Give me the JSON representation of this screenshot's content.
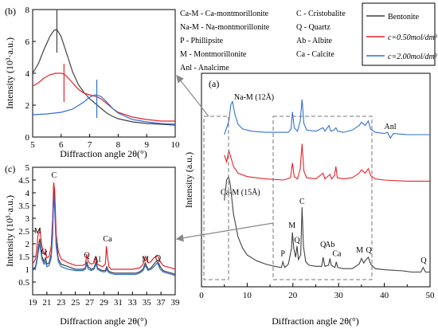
{
  "legend_entries": [
    {
      "label": "Bentonite",
      "color": "#404040"
    },
    {
      "label": "c=0.50mol/dm³",
      "color": "#e8222a"
    },
    {
      "label": "c=2.00mol/dm³",
      "color": "#2f6fd6"
    }
  ],
  "abbreviations": [
    "Ca-M - Ca-montmorillonite",
    "Na-M - Na-montmorillonite",
    "P - Phillipsite",
    "M - Montmorillonite",
    "Anl - Analcime",
    "C - Cristobalite",
    "Q - Quartz",
    "Ab - Albite",
    "Ca - Calcite"
  ],
  "chart_data": [
    {
      "panel": "(b)",
      "type": "line",
      "xlabel": "Diffraction angle 2θ(°)",
      "ylabel": "Intensity (10³·a.u.)",
      "xlim": [
        5,
        10
      ],
      "ylim": [
        0,
        8
      ],
      "xticks": [
        5,
        6,
        7,
        8,
        9,
        10
      ],
      "yticks": [
        0,
        2,
        4,
        6,
        8
      ],
      "series": [
        {
          "name": "Bentonite",
          "color": "#404040",
          "x": [
            5,
            5.2,
            5.4,
            5.6,
            5.75,
            5.85,
            6.0,
            6.2,
            6.4,
            6.6,
            6.8,
            7.0,
            7.2,
            7.4,
            7.6,
            7.8,
            8,
            8.5,
            9,
            9.5,
            10
          ],
          "y": [
            4.0,
            4.6,
            5.5,
            6.3,
            6.7,
            6.75,
            6.3,
            5.2,
            4.1,
            3.3,
            2.8,
            2.4,
            2.1,
            1.8,
            1.5,
            1.3,
            1.15,
            0.95,
            0.85,
            0.8,
            0.75
          ]
        },
        {
          "name": "c=0.50mol/dm³",
          "color": "#e8222a",
          "x": [
            5,
            5.2,
            5.4,
            5.6,
            5.8,
            6.0,
            6.1,
            6.2,
            6.4,
            6.6,
            6.8,
            7.0,
            7.2,
            7.4,
            7.6,
            7.8,
            8,
            8.5,
            9,
            9.5,
            10
          ],
          "y": [
            3.2,
            3.4,
            3.7,
            3.9,
            4.0,
            4.0,
            3.95,
            3.8,
            3.4,
            3.0,
            2.75,
            2.65,
            2.55,
            2.4,
            2.1,
            1.8,
            1.55,
            1.25,
            1.1,
            1.0,
            1.0
          ]
        },
        {
          "name": "c=2.00mol/dm³",
          "color": "#2f6fd6",
          "x": [
            5,
            5.5,
            6.0,
            6.4,
            6.8,
            7.0,
            7.2,
            7.4,
            7.6,
            7.8,
            8,
            8.5,
            9,
            9.5,
            10
          ],
          "y": [
            1.4,
            1.45,
            1.55,
            1.75,
            2.2,
            2.5,
            2.65,
            2.55,
            2.2,
            1.8,
            1.5,
            1.1,
            0.95,
            0.85,
            0.8
          ]
        }
      ],
      "markers": [
        {
          "x": 5.85,
          "y0": 5.3,
          "y1": 8.2,
          "color": "#404040"
        },
        {
          "x": 6.1,
          "y0": 2.2,
          "y1": 4.6,
          "color": "#e8222a"
        },
        {
          "x": 7.25,
          "y0": 1.2,
          "y1": 3.6,
          "color": "#2f6fd6"
        }
      ]
    },
    {
      "panel": "(a)",
      "type": "line",
      "xlabel": "Diffraction angle 2θ(°)",
      "ylabel": "Intensity (a.u.)",
      "xlim": [
        0,
        50
      ],
      "xticks": [
        0,
        10,
        20,
        30,
        40,
        50
      ],
      "peak_labels": [
        {
          "text": "Na-M (12Å)",
          "x": 11.5,
          "y": 8.45
        },
        {
          "text": "Anl",
          "x": 41.3,
          "y": 7.15
        },
        {
          "text": "Ca-M (15Å)",
          "x": 8.5,
          "y": 4.25
        },
        {
          "text": "P",
          "x": 17.8,
          "y": 1.55
        },
        {
          "text": "M",
          "x": 19.8,
          "y": 2.8
        },
        {
          "text": "Q",
          "x": 20.9,
          "y": 2.15
        },
        {
          "text": "C",
          "x": 22.0,
          "y": 3.85
        },
        {
          "text": "Q",
          "x": 26.6,
          "y": 1.95
        },
        {
          "text": "Ab",
          "x": 28.1,
          "y": 1.95
        },
        {
          "text": "Ca",
          "x": 29.6,
          "y": 1.55
        },
        {
          "text": "M",
          "x": 34.6,
          "y": 1.7
        },
        {
          "text": "Q",
          "x": 36.6,
          "y": 1.7
        },
        {
          "text": "Q",
          "x": 48.6,
          "y": 1.25
        }
      ],
      "series": [
        {
          "name": "Bentonite",
          "color": "#404040",
          "x": [
            5,
            5.5,
            5.9,
            6.3,
            7,
            8,
            9,
            10,
            12,
            14,
            16,
            17.5,
            17.8,
            18.2,
            19,
            19.7,
            19.9,
            20.2,
            20.6,
            20.9,
            21.2,
            21.7,
            22.0,
            22.3,
            22.8,
            23.5,
            25,
            26.3,
            26.6,
            27,
            27.8,
            28.1,
            28.4,
            29.2,
            29.5,
            29.8,
            31,
            33,
            34.5,
            35,
            35.5,
            36,
            36.5,
            37,
            38,
            40,
            44,
            46,
            48,
            48.5,
            49,
            50
          ],
          "y": [
            4.0,
            4.9,
            5.05,
            4.7,
            3.4,
            2.4,
            1.9,
            1.6,
            1.35,
            1.2,
            1.1,
            1.05,
            1.3,
            1.05,
            1.2,
            1.9,
            2.6,
            1.9,
            1.5,
            2.0,
            1.4,
            1.6,
            3.7,
            2.0,
            1.3,
            1.15,
            1.1,
            1.1,
            1.5,
            1.1,
            1.15,
            1.45,
            1.15,
            1.05,
            1.3,
            1.05,
            1.0,
            1.0,
            1.2,
            1.45,
            1.25,
            1.4,
            1.5,
            1.2,
            1.0,
            0.95,
            0.9,
            0.85,
            0.85,
            1.05,
            0.85,
            0.85
          ]
        },
        {
          "name": "c=0.50mol/dm³",
          "color": "#e8222a",
          "x": [
            5,
            5.5,
            6,
            7,
            8,
            10,
            14,
            18,
            19.5,
            19.9,
            20.3,
            21,
            21.6,
            22.0,
            22.4,
            23,
            25,
            26.6,
            27,
            28.1,
            28.5,
            29.1,
            29.4,
            29.7,
            31,
            33,
            34.5,
            35,
            35.8,
            36.5,
            37,
            38,
            40,
            45,
            48,
            50
          ],
          "y": [
            6.0,
            5.7,
            6.2,
            5.5,
            5.2,
            5.05,
            4.95,
            4.9,
            5.0,
            5.65,
            5.05,
            4.95,
            5.4,
            6.5,
            5.3,
            5.0,
            4.95,
            5.2,
            4.95,
            5.15,
            4.95,
            5.1,
            5.5,
            5.0,
            4.95,
            5.0,
            5.2,
            5.35,
            5.2,
            5.4,
            5.1,
            4.95,
            4.9,
            4.85,
            4.85,
            4.85
          ]
        },
        {
          "name": "c=2.00mol/dm³",
          "color": "#2f6fd6",
          "x": [
            5,
            5.5,
            6,
            6.4,
            6.8,
            7.3,
            8,
            9,
            11,
            14,
            17,
            19,
            19.6,
            19.9,
            20.3,
            21,
            21.6,
            22.0,
            22.4,
            23,
            25,
            26.6,
            27,
            27.9,
            28.3,
            29,
            29.4,
            29.8,
            31,
            33,
            34.5,
            35,
            35.8,
            36.5,
            37,
            38,
            40,
            40.7,
            41.3,
            42,
            45,
            48,
            50
          ],
          "y": [
            6.9,
            7.2,
            7.5,
            8.2,
            8.35,
            7.8,
            7.35,
            7.15,
            7.05,
            7.0,
            7.0,
            7.0,
            7.15,
            7.9,
            7.2,
            7.05,
            7.5,
            8.45,
            7.4,
            7.1,
            7.05,
            7.2,
            7.05,
            7.3,
            7.05,
            7.1,
            7.2,
            7.05,
            7.0,
            7.1,
            7.3,
            7.45,
            7.3,
            7.5,
            7.15,
            7.0,
            6.95,
            7.0,
            6.75,
            6.95,
            6.9,
            6.9,
            6.9
          ]
        }
      ]
    },
    {
      "panel": "(c)",
      "type": "line",
      "xlabel": "Diffraction angle 2θ(°)",
      "ylabel": "Intensity (10³·a.u.)",
      "xlim": [
        19,
        39
      ],
      "ylim": [
        0,
        5
      ],
      "xticks": [
        19,
        23,
        27,
        31,
        35,
        39
      ],
      "xticklabels": [
        "19",
        "21",
        "23",
        "25",
        "27",
        "29",
        "31",
        "33",
        "35",
        "37",
        "39"
      ],
      "xticks_all": [
        19,
        21,
        23,
        25,
        27,
        29,
        31,
        33,
        35,
        37,
        39
      ],
      "yticks": [
        0,
        0.5,
        1.0,
        1.5,
        2.0,
        2.5,
        3.0,
        3.5,
        4.0,
        4.5,
        5.0
      ],
      "yticklabels": [
        "",
        "0.5",
        "1",
        "1.5",
        "2",
        "2.5",
        "3",
        "3.5",
        "4",
        "4.5",
        "5"
      ],
      "peak_labels": [
        {
          "text": "M",
          "x": 19.7,
          "y": 2.4
        },
        {
          "text": "Q",
          "x": 20.6,
          "y": 1.6
        },
        {
          "text": "C",
          "x": 22.0,
          "y": 4.6
        },
        {
          "text": "Q",
          "x": 26.6,
          "y": 1.45
        },
        {
          "text": "Al",
          "x": 28.0,
          "y": 1.3
        },
        {
          "text": "Ca",
          "x": 29.5,
          "y": 2.1
        },
        {
          "text": "M",
          "x": 34.8,
          "y": 1.3
        },
        {
          "text": "Q",
          "x": 36.6,
          "y": 1.35
        }
      ],
      "series": [
        {
          "name": "Bentonite",
          "color": "#404040",
          "x": [
            19,
            19.4,
            19.6,
            19.8,
            20.0,
            20.3,
            20.6,
            20.8,
            21.0,
            21.3,
            21.6,
            21.8,
            21.95,
            22.1,
            22.3,
            22.6,
            23,
            24,
            25,
            26,
            26.4,
            26.6,
            26.8,
            27.2,
            27.6,
            27.9,
            28.1,
            28.4,
            28.8,
            29.2,
            29.4,
            29.6,
            29.8,
            30.5,
            31.5,
            32.5,
            33.5,
            34,
            34.5,
            34.8,
            35.2,
            35.6,
            36.0,
            36.5,
            36.9,
            37.3,
            37.8,
            38.5,
            39
          ],
          "y": [
            1.0,
            1.1,
            1.4,
            1.9,
            2.2,
            1.5,
            1.3,
            1.45,
            1.2,
            1.25,
            1.6,
            2.6,
            4.3,
            3.6,
            2.1,
            1.4,
            1.2,
            1.1,
            1.0,
            1.0,
            1.05,
            1.3,
            1.1,
            1.0,
            1.05,
            1.3,
            1.05,
            1.0,
            0.95,
            0.95,
            1.1,
            0.95,
            0.9,
            0.85,
            0.85,
            0.85,
            0.85,
            0.9,
            1.0,
            1.25,
            1.0,
            1.05,
            1.2,
            1.35,
            1.1,
            0.95,
            0.9,
            0.85,
            0.8
          ]
        },
        {
          "name": "c=0.50mol/dm³",
          "color": "#e8222a",
          "x": [
            19,
            19.4,
            19.6,
            19.8,
            20.0,
            20.3,
            20.6,
            20.8,
            21.0,
            21.3,
            21.6,
            21.8,
            21.95,
            22.1,
            22.3,
            22.6,
            23,
            24,
            25,
            26,
            26.4,
            26.6,
            26.8,
            27.2,
            27.6,
            27.9,
            28.1,
            28.4,
            28.8,
            29.2,
            29.35,
            29.5,
            29.7,
            30,
            31,
            32,
            33,
            34,
            34.5,
            34.8,
            35.2,
            35.6,
            36.0,
            36.5,
            36.9,
            37.3,
            37.8,
            38.5,
            39
          ],
          "y": [
            1.2,
            1.4,
            1.9,
            2.5,
            2.6,
            1.9,
            1.6,
            1.7,
            1.45,
            1.5,
            1.9,
            3.0,
            4.4,
            4.1,
            2.4,
            1.7,
            1.4,
            1.25,
            1.15,
            1.15,
            1.2,
            1.6,
            1.3,
            1.2,
            1.25,
            1.5,
            1.2,
            1.15,
            1.1,
            1.2,
            1.9,
            1.5,
            1.1,
            1.0,
            1.0,
            1.0,
            1.0,
            1.05,
            1.2,
            1.5,
            1.25,
            1.3,
            1.45,
            1.55,
            1.3,
            1.15,
            1.1,
            1.05,
            1.0
          ]
        },
        {
          "name": "c=2.00mol/dm³",
          "color": "#2f6fd6",
          "x": [
            19,
            19.4,
            19.6,
            19.8,
            20.0,
            20.3,
            20.6,
            20.8,
            21.0,
            21.3,
            21.6,
            21.8,
            21.95,
            22.1,
            22.3,
            22.6,
            23,
            24,
            25,
            26,
            26.4,
            26.6,
            26.8,
            27.2,
            27.6,
            27.9,
            28.1,
            28.4,
            28.8,
            29.2,
            29.4,
            29.6,
            29.8,
            30.5,
            31.5,
            32.5,
            33.5,
            34,
            34.5,
            34.8,
            35.2,
            35.6,
            36.0,
            36.5,
            36.9,
            37.3,
            37.8,
            38.5,
            39
          ],
          "y": [
            0.95,
            1.05,
            1.3,
            1.7,
            2.0,
            1.4,
            1.2,
            1.3,
            1.1,
            1.15,
            1.45,
            2.3,
            3.9,
            3.3,
            1.9,
            1.3,
            1.1,
            1.0,
            0.95,
            0.95,
            1.0,
            1.2,
            1.0,
            0.95,
            1.0,
            1.2,
            1.0,
            0.95,
            0.9,
            0.9,
            1.0,
            0.9,
            0.85,
            0.8,
            0.8,
            0.8,
            0.8,
            0.85,
            0.95,
            1.15,
            0.95,
            1.0,
            1.1,
            1.25,
            1.0,
            0.9,
            0.85,
            0.8,
            0.75
          ]
        }
      ]
    }
  ]
}
